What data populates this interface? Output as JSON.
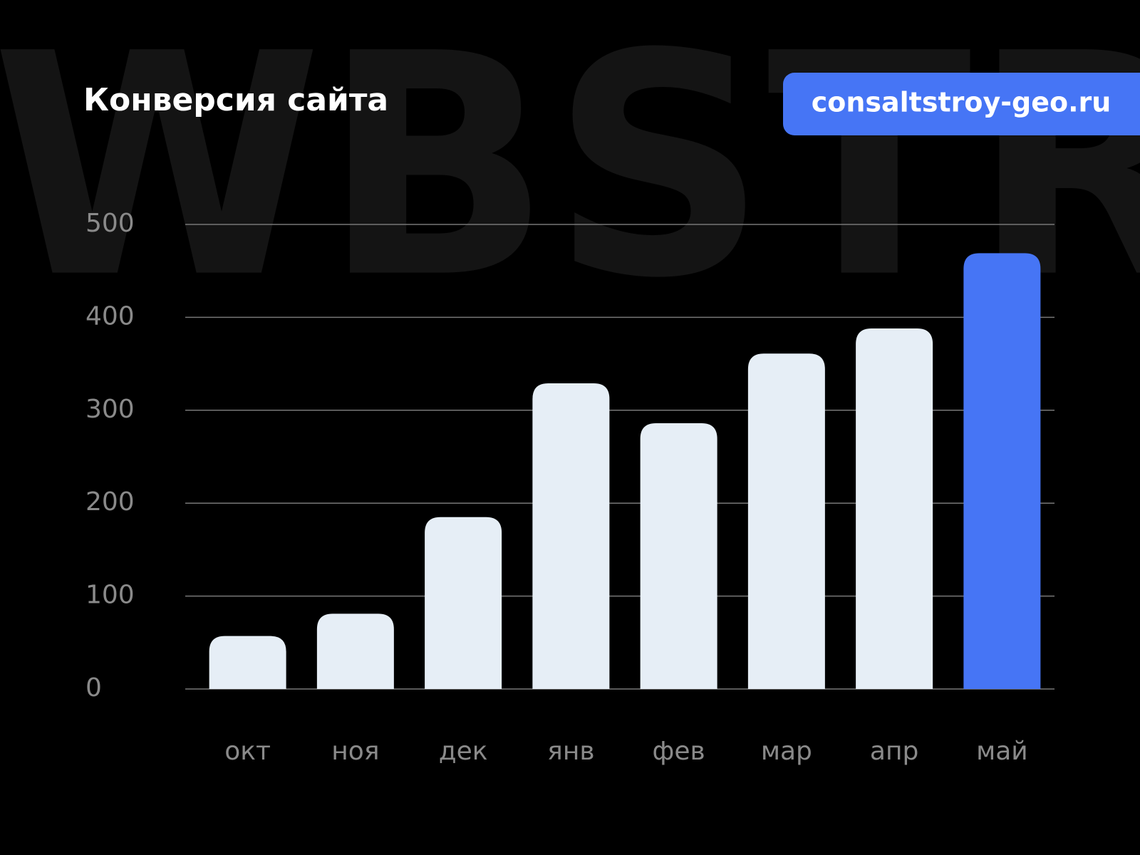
{
  "chart_data": {
    "type": "bar",
    "title": "Конверсия сайта",
    "watermark": "WBSTR",
    "badge": "consaltstroy-geo.ru",
    "categories": [
      "окт",
      "ноя",
      "дек",
      "янв",
      "фев",
      "мар",
      "апр",
      "май"
    ],
    "values": [
      57,
      81,
      185,
      329,
      286,
      361,
      388,
      469
    ],
    "colors": [
      "#e6eef6",
      "#e6eef6",
      "#e6eef6",
      "#e6eef6",
      "#e6eef6",
      "#e6eef6",
      "#e6eef6",
      "#4675f5"
    ],
    "ylim": [
      0,
      500
    ],
    "yticks": [
      0,
      100,
      200,
      300,
      400,
      500
    ],
    "grid": true
  }
}
